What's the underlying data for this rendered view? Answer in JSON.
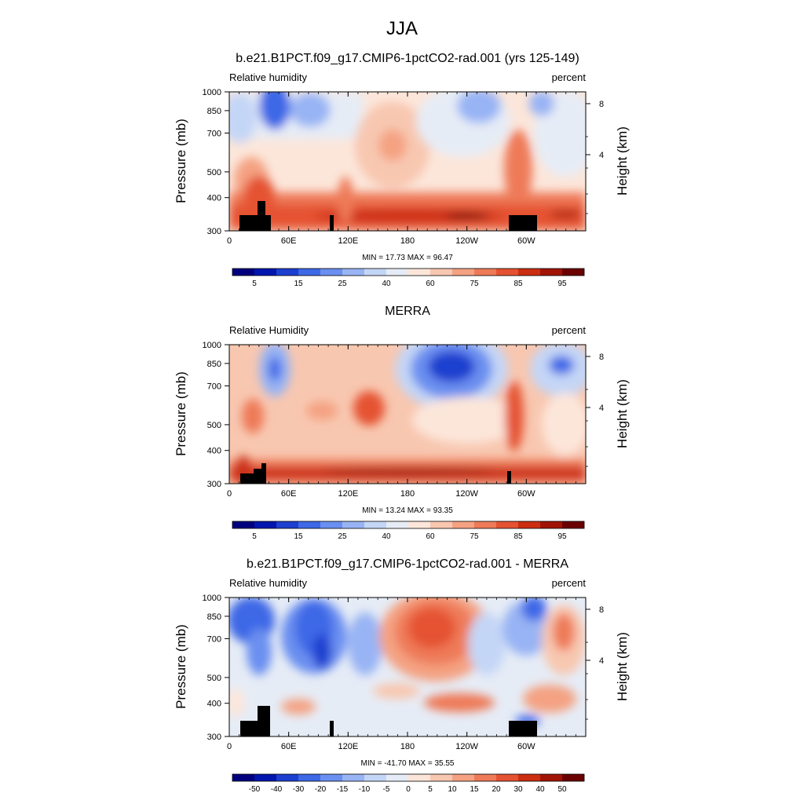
{
  "main_title": "JJA",
  "colors": {
    "rh_levels": [
      "#00007f",
      "#0016ae",
      "#1c3fcf",
      "#3d68e6",
      "#6a8ff0",
      "#98b4f4",
      "#c4d6f6",
      "#e6ecf6",
      "#fce6da",
      "#f8c7b0",
      "#f4a282",
      "#ee7a58",
      "#e55231",
      "#cc2e12",
      "#a11405",
      "#6a0000"
    ],
    "diff_levels": [
      "#00007f",
      "#0016ae",
      "#1c3fcf",
      "#3d68e6",
      "#6a8ff0",
      "#98b4f4",
      "#c4d6f6",
      "#e6ecf6",
      "#fbe5d8",
      "#f8c7b0",
      "#f4a282",
      "#ee7a58",
      "#e55231",
      "#cc2e12",
      "#a11405",
      "#6a0000"
    ],
    "topography": "#000000"
  },
  "chart_data": [
    {
      "type": "heatmap",
      "title": "b.e21.B1PCT.f09_g17.CMIP6-1pctCO2-rad.001 (yrs 125-149)",
      "left_label": "Relative humidity",
      "right_label": "percent",
      "ylabel": "Pressure (mb)",
      "y2label": "Height (km)",
      "xticks": [
        "0",
        "60E",
        "120E",
        "180",
        "120W",
        "60W"
      ],
      "xtick_values": [
        0,
        60,
        120,
        180,
        240,
        300
      ],
      "xlim": [
        0,
        360
      ],
      "yticks": [
        "300",
        "400",
        "500",
        "700",
        "850",
        "1000"
      ],
      "ytick_values": [
        300,
        400,
        500,
        700,
        850,
        1000
      ],
      "ylim": [
        1000,
        300
      ],
      "y2ticks": [
        "8",
        "4"
      ],
      "stats": "MIN =  17.73  MAX =  96.47",
      "min": 17.73,
      "max": 96.47,
      "colorbar_labels": [
        "5",
        "15",
        "25",
        "40",
        "60",
        "75",
        "85",
        "95"
      ],
      "colorbar_levels": [
        5,
        10,
        15,
        20,
        25,
        30,
        40,
        50,
        60,
        70,
        75,
        80,
        85,
        90,
        95
      ]
    },
    {
      "type": "heatmap",
      "title": "MERRA",
      "left_label": "Relative Humidity",
      "right_label": "percent",
      "ylabel": "Pressure (mb)",
      "y2label": "Height (km)",
      "xticks": [
        "0",
        "60E",
        "120E",
        "180",
        "120W",
        "60W"
      ],
      "xtick_values": [
        0,
        60,
        120,
        180,
        240,
        300
      ],
      "xlim": [
        0,
        360
      ],
      "yticks": [
        "300",
        "400",
        "500",
        "700",
        "850",
        "1000"
      ],
      "ytick_values": [
        300,
        400,
        500,
        700,
        850,
        1000
      ],
      "ylim": [
        1000,
        300
      ],
      "y2ticks": [
        "8",
        "4"
      ],
      "stats": "MIN =  13.24  MAX =  93.35",
      "min": 13.24,
      "max": 93.35,
      "colorbar_labels": [
        "5",
        "15",
        "25",
        "40",
        "60",
        "75",
        "85",
        "95"
      ],
      "colorbar_levels": [
        5,
        10,
        15,
        20,
        25,
        30,
        40,
        50,
        60,
        70,
        75,
        80,
        85,
        90,
        95
      ]
    },
    {
      "type": "heatmap",
      "title": "b.e21.B1PCT.f09_g17.CMIP6-1pctCO2-rad.001 - MERRA",
      "left_label": "Relative humidity",
      "right_label": "percent",
      "ylabel": "Pressure (mb)",
      "y2label": "Height (km)",
      "xticks": [
        "0",
        "60E",
        "120E",
        "180",
        "120W",
        "60W"
      ],
      "xtick_values": [
        0,
        60,
        120,
        180,
        240,
        300
      ],
      "xlim": [
        0,
        360
      ],
      "yticks": [
        "300",
        "400",
        "500",
        "700",
        "850",
        "1000"
      ],
      "ytick_values": [
        300,
        400,
        500,
        700,
        850,
        1000
      ],
      "ylim": [
        1000,
        300
      ],
      "y2ticks": [
        "8",
        "4"
      ],
      "stats": "MIN = -41.70  MAX =  35.55",
      "min": -41.7,
      "max": 35.55,
      "colorbar_labels": [
        "-50",
        "-40",
        "-30",
        "-20",
        "-15",
        "-10",
        "-5",
        "0",
        "5",
        "10",
        "15",
        "20",
        "30",
        "40",
        "50"
      ],
      "colorbar_levels": [
        -50,
        -40,
        -30,
        -20,
        -15,
        -10,
        -5,
        0,
        5,
        10,
        15,
        20,
        30,
        40,
        50
      ]
    }
  ]
}
